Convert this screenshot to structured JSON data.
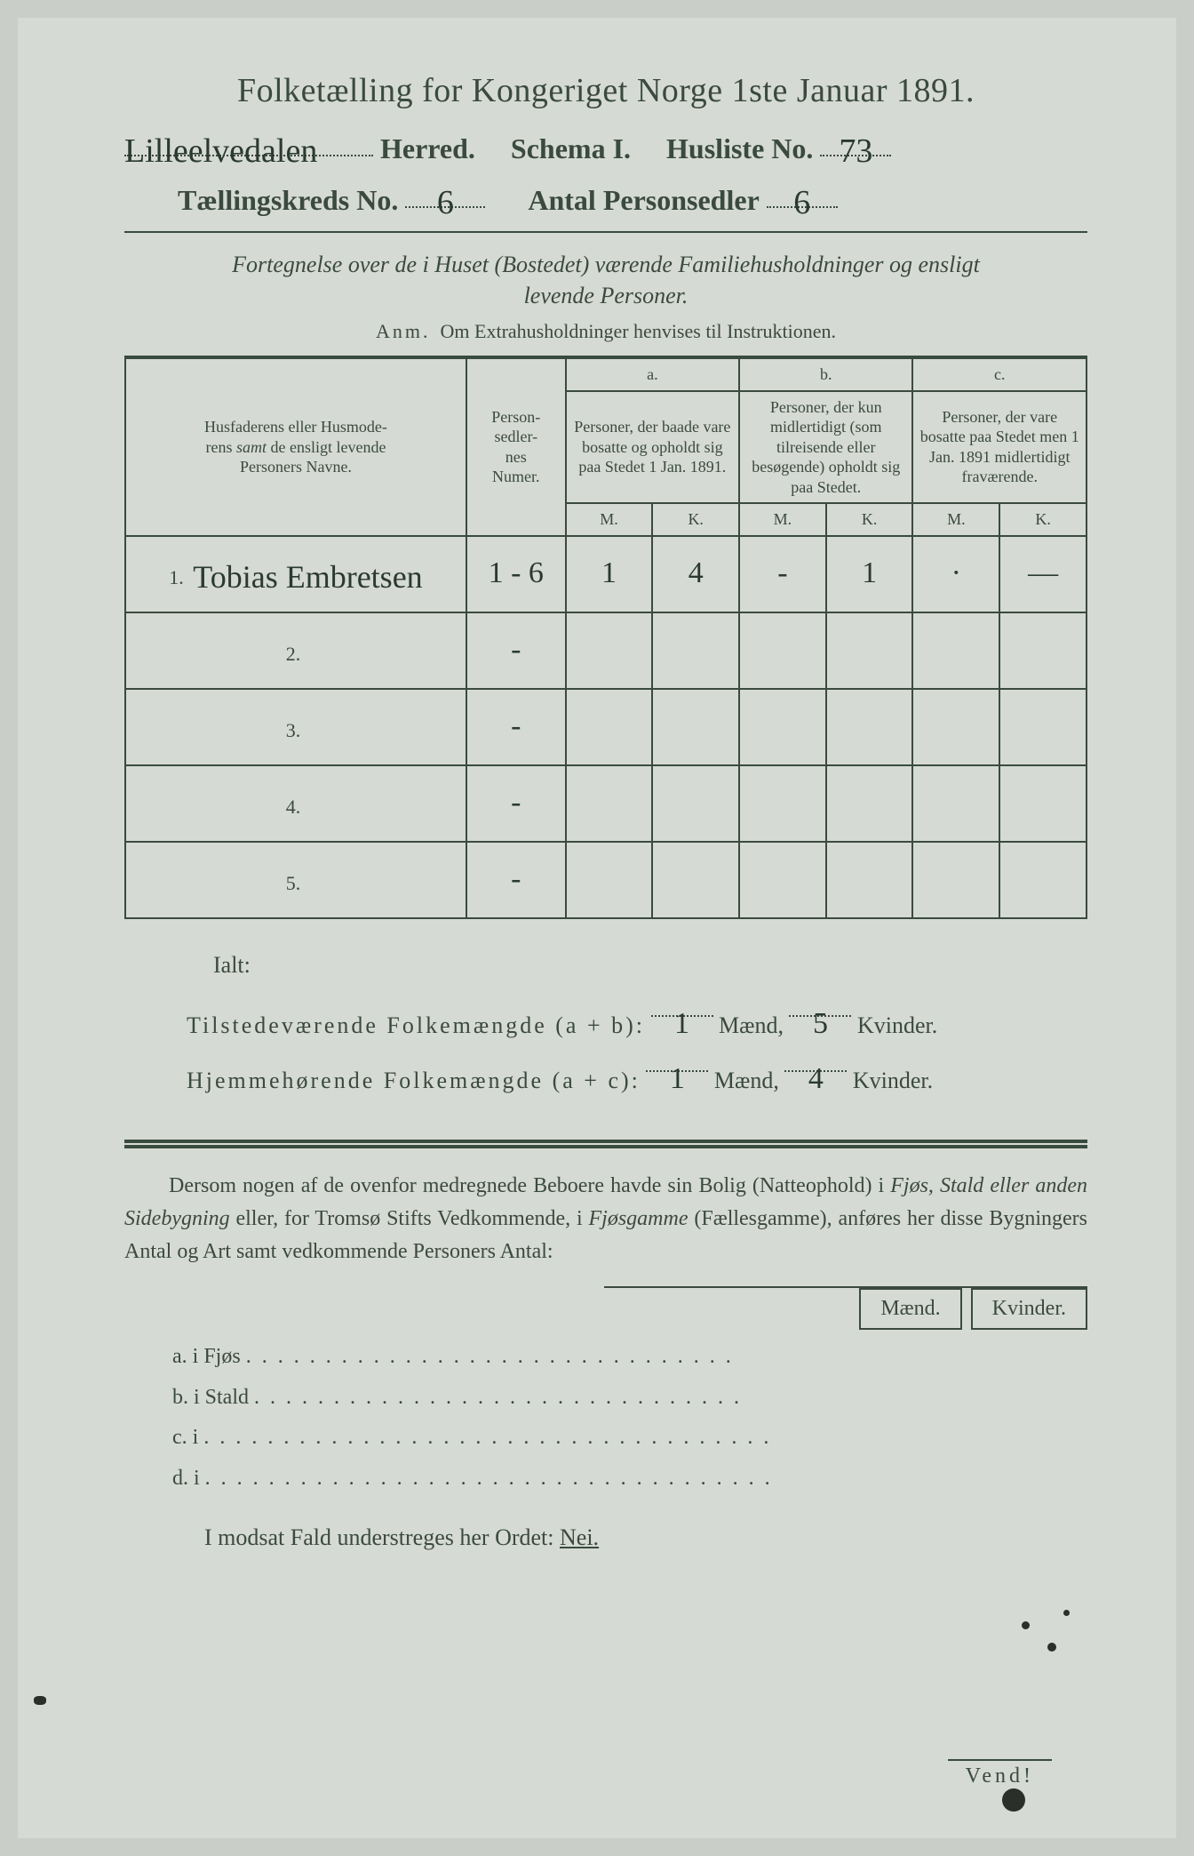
{
  "header": {
    "title": "Folketælling for Kongeriget Norge 1ste Januar 1891.",
    "herred_value": "Lilleelvedalen",
    "herred_label": "Herred.",
    "schema_label": "Schema I.",
    "husliste_label": "Husliste No.",
    "husliste_value": "73",
    "kreds_label": "Tællingskreds No.",
    "kreds_value": "6",
    "antal_label": "Antal Personsedler",
    "antal_value": "6"
  },
  "subtitle": {
    "line1": "Fortegnelse over de i Huset (Bostedet) værende Familiehusholdninger og ensligt",
    "line2": "levende Personer."
  },
  "anm": {
    "label": "Anm.",
    "text": "Om Extrahusholdninger henvises til Instruktionen."
  },
  "table": {
    "col_names": "Husfaderens eller Husmoderens samt de ensligt levende Personers Navne.",
    "col_num": "Person-\nsedler-\nnes\nNumer.",
    "group_a_label": "a.",
    "group_a_desc": "Personer, der baade vare bosatte og opholdt sig paa Stedet 1 Jan. 1891.",
    "group_b_label": "b.",
    "group_b_desc": "Personer, der kun midlertidigt (som tilreisende eller besøgende) opholdt sig paa Stedet.",
    "group_c_label": "c.",
    "group_c_desc": "Personer, der vare bosatte paa Stedet men 1 Jan. 1891 midlertidigt fraværende.",
    "m": "M.",
    "k": "K.",
    "rows": [
      {
        "n": "1.",
        "name": "Tobias Embretsen",
        "num": "1 - 6",
        "a_m": "1",
        "a_k": "4",
        "b_m": "-",
        "b_k": "1",
        "c_m": "·",
        "c_k": "—"
      },
      {
        "n": "2.",
        "name": "",
        "num": "-",
        "a_m": "",
        "a_k": "",
        "b_m": "",
        "b_k": "",
        "c_m": "",
        "c_k": ""
      },
      {
        "n": "3.",
        "name": "",
        "num": "-",
        "a_m": "",
        "a_k": "",
        "b_m": "",
        "b_k": "",
        "c_m": "",
        "c_k": ""
      },
      {
        "n": "4.",
        "name": "",
        "num": "-",
        "a_m": "",
        "a_k": "",
        "b_m": "",
        "b_k": "",
        "c_m": "",
        "c_k": ""
      },
      {
        "n": "5.",
        "name": "",
        "num": "-",
        "a_m": "",
        "a_k": "",
        "b_m": "",
        "b_k": "",
        "c_m": "",
        "c_k": ""
      }
    ]
  },
  "summary": {
    "ialt": "Ialt:",
    "line1_label": "Tilstedeværende Folkemængde (a + b):",
    "line1_m": "1",
    "line1_k": "5",
    "line2_label": "Hjemmehørende Folkemængde (a + c):",
    "line2_m": "1",
    "line2_k": "4",
    "maend": "Mænd,",
    "kvinder": "Kvinder."
  },
  "para": "Dersom nogen af de ovenfor medregnede Beboere havde sin Bolig (Natteophold) i Fjøs, Stald eller anden Sidebygning eller, for Tromsø Stifts Vedkommende, i Fjøsgamme (Fællesgamme), anføres her disse Bygningers Antal og Art samt vedkommende Personers Antal:",
  "mk": {
    "m": "Mænd.",
    "k": "Kvinder."
  },
  "sidelist": {
    "a": "a. i    Fjøs",
    "b": "b. i    Stald",
    "c": "c. i",
    "d": "d. i"
  },
  "nei": {
    "text": "I modsat Fald understreges her Ordet:",
    "word": "Nei."
  },
  "vend": "Vend!",
  "colors": {
    "page_bg": "#d6dad4",
    "ink": "#3a4a3f",
    "handwriting": "#2a3a30"
  },
  "typography": {
    "title_fontsize": 38,
    "header_fontsize": 32,
    "subtitle_fontsize": 26,
    "body_fontsize": 24,
    "table_fontsize": 18,
    "handwriting_font": "cursive"
  }
}
